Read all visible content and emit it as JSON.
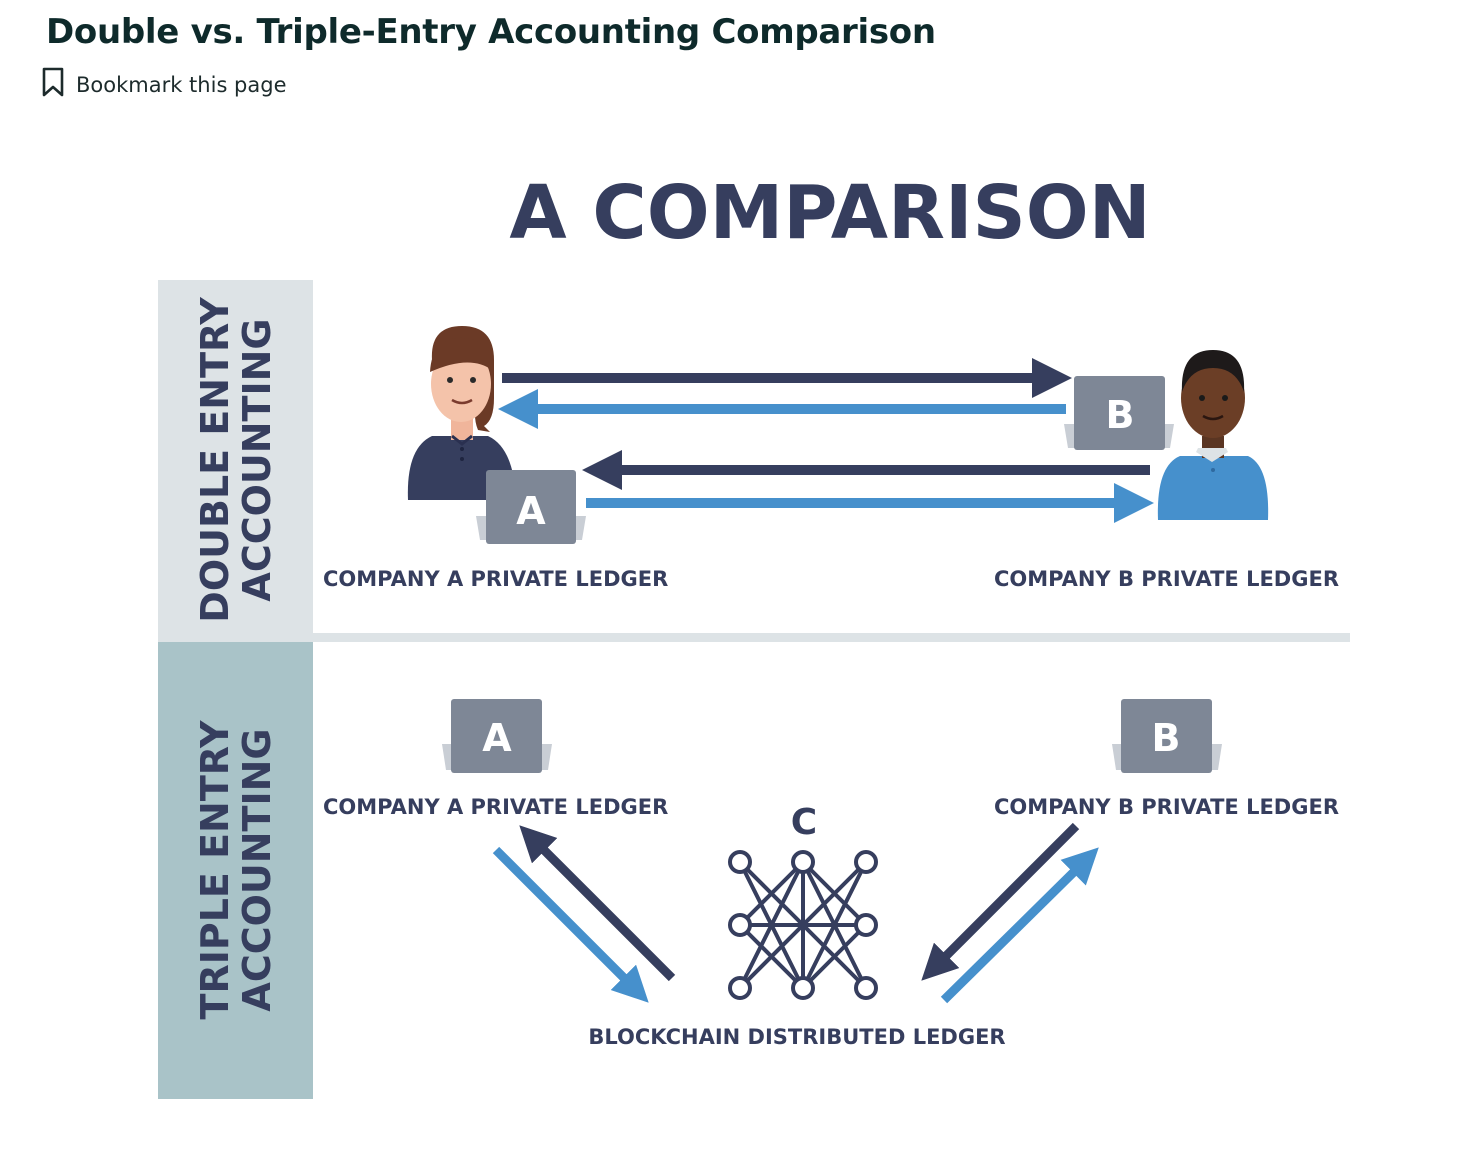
{
  "page": {
    "title": "Double vs. Triple-Entry Accounting Comparison",
    "bookmark_label": "Bookmark this page"
  },
  "diagram": {
    "heading": "A COMPARISON",
    "colors": {
      "navy": "#363e5e",
      "blue": "#4690cc",
      "laptop": "#7e8796",
      "band_double": "#dde3e6",
      "band_triple": "#a9c3c8"
    },
    "double_entry": {
      "label_line1": "DOUBLE ENTRY",
      "label_line2": "ACCOUNTING",
      "laptop_a_letter": "A",
      "laptop_b_letter": "B",
      "company_a_label": "COMPANY A PRIVATE LEDGER",
      "company_b_label": "COMPANY B PRIVATE LEDGER"
    },
    "triple_entry": {
      "label_line1": "TRIPLE ENTRY",
      "label_line2": "ACCOUNTING",
      "laptop_a_letter": "A",
      "laptop_b_letter": "B",
      "company_a_label": "COMPANY A PRIVATE LEDGER",
      "company_b_label": "COMPANY B PRIVATE LEDGER",
      "network_letter": "C",
      "blockchain_label": "BLOCKCHAIN DISTRIBUTED LEDGER"
    }
  }
}
